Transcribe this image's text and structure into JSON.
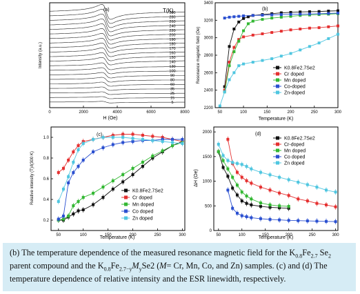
{
  "caption": {
    "p1": "(b) The temperature dependence of the measured resonance magnetic field for the K",
    "s1": "0.8",
    "p2": "Fe",
    "s2": "2.7",
    "p3": " Se",
    "s3": "2",
    "p4": " parent compound and the K",
    "s4": "0.8",
    "p5": "Fe",
    "s5": "2.7",
    "s6": "y",
    "p6": "M",
    "s7": "y",
    "p7": "Se2 (",
    "p8": "M",
    "p9": "= Cr, Mn, Co, and Zn) samples. (c) and (d) The temperature dependence of relative intensity and the ESR linewidth, respectively."
  },
  "colors": {
    "parent": "#111111",
    "cr": "#e53030",
    "mn": "#33b833",
    "co": "#2a4fd0",
    "zn": "#4fc6e0"
  },
  "chart_data": [
    {
      "panel": "(a)",
      "type": "line",
      "xlabel": "H (Oe)",
      "ylabel": "Intensity (a.u.)",
      "xlim": [
        0,
        8000
      ],
      "xticks": [
        "0",
        "2000",
        "4000",
        "6000",
        "8000"
      ],
      "legend_title": "T(K)",
      "temperatures": [
        "300",
        "280",
        "260",
        "240",
        "220",
        "200",
        "190",
        "180",
        "170",
        "160",
        "150",
        "140",
        "130",
        "100",
        "90",
        "80",
        "60",
        "35",
        "25",
        "15",
        "5"
      ],
      "grid": false
    },
    {
      "panel": "(b)",
      "type": "line",
      "xlabel": "Temperature (K)",
      "ylabel": "Resonance magnetic field (Oe)",
      "xlim": [
        40,
        300
      ],
      "ylim": [
        2200,
        3400
      ],
      "xticks": [
        50,
        100,
        150,
        200,
        250,
        300
      ],
      "yticks": [
        2200,
        2400,
        2600,
        2800,
        3000,
        3200,
        3400
      ],
      "legend_position": "bottom-right",
      "series": [
        {
          "name": "K0.8Fe2.7Se2",
          "key": "parent",
          "marker": "square",
          "x": [
            60,
            70,
            80,
            90,
            100,
            110,
            120,
            140,
            160,
            180,
            200,
            220,
            240,
            260,
            280,
            300
          ],
          "y": [
            2440,
            2900,
            3100,
            3180,
            3220,
            3240,
            3255,
            3265,
            3275,
            3285,
            3290,
            3295,
            3298,
            3300,
            3305,
            3308
          ]
        },
        {
          "name": "Cr doped",
          "key": "cr",
          "marker": "square",
          "x": [
            60,
            70,
            80,
            90,
            100,
            120,
            140,
            160,
            180,
            200,
            220,
            240,
            260,
            280,
            300
          ],
          "y": [
            2400,
            2720,
            2890,
            2980,
            3010,
            3030,
            3045,
            3060,
            3075,
            3090,
            3100,
            3110,
            3115,
            3125,
            3135
          ]
        },
        {
          "name": "Mn doped",
          "key": "mn",
          "marker": "square",
          "x": [
            60,
            70,
            80,
            90,
            100,
            110,
            120,
            140,
            160,
            180,
            200,
            220,
            240,
            260,
            280,
            300
          ],
          "y": [
            2380,
            2680,
            2840,
            2960,
            3080,
            3160,
            3190,
            3210,
            3225,
            3235,
            3245,
            3255,
            3260,
            3265,
            3270,
            3275
          ]
        },
        {
          "name": "Co-doped",
          "key": "co",
          "marker": "square",
          "x": [
            60,
            70,
            80,
            90,
            100,
            120,
            140,
            160,
            180,
            200,
            220,
            240,
            260,
            280,
            300
          ],
          "y": [
            3225,
            3235,
            3240,
            3245,
            3250,
            3255,
            3258,
            3262,
            3265,
            3268,
            3270,
            3272,
            3275,
            3278,
            3282
          ]
        },
        {
          "name": "Zn-doped",
          "key": "zn",
          "marker": "square",
          "x": [
            50,
            60,
            70,
            80,
            90,
            100,
            120,
            140,
            160,
            180,
            200,
            220,
            240,
            260,
            280,
            300
          ],
          "y": [
            2220,
            2380,
            2520,
            2600,
            2680,
            2700,
            2720,
            2740,
            2760,
            2790,
            2820,
            2860,
            2900,
            2940,
            2990,
            3040
          ]
        }
      ]
    },
    {
      "panel": "(c)",
      "type": "line",
      "xlabel": "Temperature (K)",
      "ylabel": "Relative intensity (T)/I(300 K)",
      "xlim": [
        35,
        305
      ],
      "ylim": [
        0.1,
        1.1
      ],
      "xticks": [
        50,
        100,
        150,
        200,
        250,
        300
      ],
      "yticks": [
        0.2,
        0.4,
        0.6,
        0.8,
        1.0
      ],
      "legend_position": "bottom-right",
      "series": [
        {
          "name": "K0.8Fe2.7Se2",
          "key": "parent",
          "marker": "square",
          "x": [
            50,
            60,
            70,
            80,
            90,
            100,
            120,
            140,
            160,
            180,
            200,
            220,
            240,
            260,
            280,
            300
          ],
          "y": [
            0.2,
            0.2,
            0.23,
            0.26,
            0.29,
            0.3,
            0.35,
            0.42,
            0.5,
            0.57,
            0.64,
            0.72,
            0.8,
            0.86,
            0.92,
            0.96
          ]
        },
        {
          "name": "Cr doped",
          "key": "cr",
          "marker": "square",
          "x": [
            50,
            60,
            70,
            80,
            90,
            100,
            120,
            140,
            160,
            180,
            200,
            220,
            240,
            260,
            280,
            300
          ],
          "y": [
            0.66,
            0.7,
            0.78,
            0.86,
            0.92,
            0.96,
            0.98,
            1.0,
            1.02,
            1.03,
            1.03,
            1.02,
            1.01,
            1.0,
            0.98,
            0.96
          ]
        },
        {
          "name": "Mn doped",
          "key": "mn",
          "marker": "square",
          "x": [
            50,
            60,
            70,
            80,
            90,
            100,
            120,
            140,
            160,
            180,
            200,
            220,
            240,
            260,
            280,
            300
          ],
          "y": [
            0.2,
            0.21,
            0.24,
            0.34,
            0.38,
            0.42,
            0.46,
            0.52,
            0.58,
            0.64,
            0.7,
            0.76,
            0.82,
            0.87,
            0.92,
            0.95
          ]
        },
        {
          "name": "Co doped",
          "key": "co",
          "marker": "square",
          "x": [
            50,
            60,
            70,
            80,
            90,
            100,
            120,
            140,
            160,
            180,
            200,
            220,
            240,
            260,
            280,
            300
          ],
          "y": [
            0.21,
            0.24,
            0.56,
            0.66,
            0.72,
            0.78,
            0.86,
            0.9,
            0.93,
            0.95,
            0.96,
            0.97,
            0.97,
            0.98,
            0.98,
            0.98
          ]
        },
        {
          "name": "Zn doped",
          "key": "zn",
          "marker": "square",
          "x": [
            50,
            60,
            70,
            80,
            90,
            100,
            120,
            140,
            160,
            180,
            200,
            220,
            240,
            260,
            280,
            300
          ],
          "y": [
            0.38,
            0.5,
            0.62,
            0.76,
            0.88,
            0.94,
            0.98,
            1.0,
            1.0,
            1.0,
            0.99,
            0.98,
            0.97,
            0.96,
            0.95,
            0.94
          ]
        }
      ]
    },
    {
      "panel": "(d)",
      "type": "line",
      "xlabel": "Temperature (K)",
      "ylabel": "ΔH (Oe)",
      "xlim": [
        40,
        305
      ],
      "ylim": [
        0,
        2100
      ],
      "xticks": [
        50,
        100,
        150,
        200,
        250,
        300
      ],
      "yticks": [
        0,
        500,
        1000,
        1500,
        2000
      ],
      "legend_position": "top-right",
      "series": [
        {
          "name": "K0.8Fe2.7Se2",
          "key": "parent",
          "marker": "square",
          "x": [
            50,
            60,
            70,
            80,
            90,
            100,
            110,
            120,
            140,
            160,
            180,
            200
          ],
          "y": [
            1600,
            1280,
            1100,
            860,
            720,
            600,
            550,
            520,
            490,
            470,
            460,
            450
          ]
        },
        {
          "name": "Cr-doped",
          "key": "cr",
          "marker": "square",
          "x": [
            70,
            80,
            90,
            100,
            110,
            120,
            140,
            160,
            180,
            200,
            220,
            240,
            260,
            280,
            300
          ],
          "y": [
            1850,
            1360,
            1180,
            1080,
            1010,
            960,
            880,
            820,
            760,
            710,
            640,
            600,
            550,
            520,
            480
          ]
        },
        {
          "name": "Mn doped",
          "key": "mn",
          "marker": "square",
          "x": [
            50,
            60,
            70,
            80,
            90,
            100,
            110,
            120,
            140,
            160,
            180,
            200
          ],
          "y": [
            1600,
            1420,
            1250,
            1080,
            920,
            780,
            700,
            640,
            560,
            520,
            500,
            490
          ]
        },
        {
          "name": "Co doped",
          "key": "co",
          "marker": "square",
          "x": [
            70,
            80,
            90,
            100,
            110,
            120,
            140,
            160,
            180,
            200,
            220,
            240,
            260,
            280,
            300
          ],
          "y": [
            820,
            450,
            350,
            300,
            280,
            260,
            240,
            225,
            215,
            205,
            200,
            195,
            190,
            185,
            180
          ]
        },
        {
          "name": "Zn doped",
          "key": "zn",
          "marker": "square",
          "x": [
            50,
            60,
            70,
            80,
            90,
            100,
            110,
            120,
            140,
            160,
            180,
            200,
            220,
            240,
            260,
            280,
            300
          ],
          "y": [
            1750,
            1520,
            1420,
            1380,
            1360,
            1340,
            1300,
            1250,
            1180,
            1130,
            1080,
            1030,
            980,
            930,
            880,
            820,
            780
          ]
        }
      ]
    }
  ]
}
